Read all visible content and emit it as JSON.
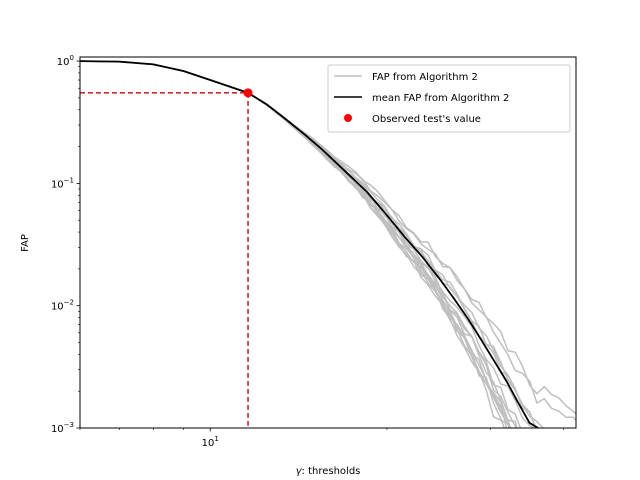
{
  "chart_data": {
    "type": "line",
    "xscale": "log",
    "yscale": "log",
    "xlabel_symbol": "γ",
    "xlabel_text": ": thresholds",
    "ylabel": "FAP",
    "xlim": [
      6,
      42
    ],
    "ylim": [
      0.001,
      1.08
    ],
    "x_ticks": [
      {
        "value": 10,
        "base": "10",
        "exp": "1"
      }
    ],
    "y_ticks": [
      {
        "value": 1,
        "base": "10",
        "exp": "0"
      },
      {
        "value": 0.1,
        "base": "10",
        "exp": "−1"
      },
      {
        "value": 0.01,
        "base": "10",
        "exp": "−2"
      },
      {
        "value": 0.001,
        "base": "10",
        "exp": "−3"
      }
    ],
    "legend": {
      "placement": "upper right",
      "entries": [
        {
          "label": "FAP from Algorithm 2",
          "style": "line",
          "color": "#bfbfbf"
        },
        {
          "label": "mean FAP from Algorithm 2",
          "style": "line",
          "color": "#000000"
        },
        {
          "label": "Observed test's value",
          "style": "marker",
          "color": "#ff0000"
        }
      ]
    },
    "mean_series": {
      "name": "mean FAP from Algorithm 2",
      "color": "#000000",
      "x": [
        6,
        7,
        8,
        9,
        10,
        11,
        11.6,
        12.5,
        13.5,
        14.5,
        15.5,
        17,
        18.5,
        20,
        21.5,
        23,
        24.5,
        26,
        27.5,
        29,
        30.5,
        32,
        33.5,
        35,
        36.2
      ],
      "y": [
        1.0,
        0.99,
        0.94,
        0.83,
        0.7,
        0.6,
        0.55,
        0.44,
        0.33,
        0.25,
        0.19,
        0.125,
        0.085,
        0.055,
        0.036,
        0.025,
        0.017,
        0.0115,
        0.0078,
        0.0052,
        0.0035,
        0.0024,
        0.0016,
        0.0011,
        0.001
      ]
    },
    "gray_series": {
      "name": "FAP from Algorithm 2",
      "color": "#bfbfbf",
      "count": 15
    },
    "observed_point": {
      "x": 11.6,
      "y": 0.55,
      "color": "#ff0000"
    },
    "guide_lines": {
      "color": "#d62728",
      "style": "dashed"
    }
  }
}
